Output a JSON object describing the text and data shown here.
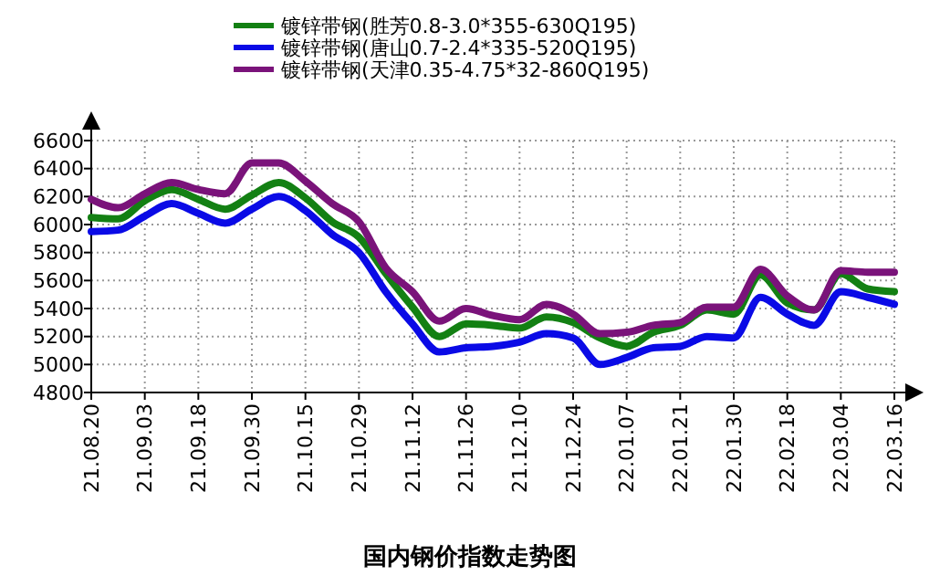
{
  "chart_data": {
    "type": "line",
    "title": "国内钢价指数走势图",
    "categories": [
      "21.08.20",
      null,
      "21.09.03",
      null,
      "21.09.18",
      null,
      "21.09.30",
      null,
      "21.10.15",
      null,
      "21.10.29",
      null,
      "21.11.12",
      null,
      "21.11.26",
      null,
      "21.12.10",
      null,
      "21.12.24",
      null,
      "22.01.07",
      null,
      "22.01.21",
      null,
      "22.01.30",
      null,
      "22.02.18",
      null,
      "22.03.04",
      null,
      "22.03.16"
    ],
    "series": [
      {
        "name": "镀锌带钢(胜芳0.8-3.0*355-630Q195)",
        "color": "#138013",
        "values": [
          6050,
          6040,
          6170,
          6250,
          6180,
          6110,
          6210,
          6300,
          6190,
          6020,
          5910,
          5650,
          5410,
          5200,
          5290,
          5280,
          5260,
          5340,
          5300,
          5190,
          5130,
          5230,
          5280,
          5390,
          5360,
          5640,
          5440,
          5390,
          5650,
          5540,
          5520
        ]
      },
      {
        "name": "镀锌带钢(唐山0.7-2.4*335-520Q195)",
        "color": "#0a0ae6",
        "values": [
          5950,
          5960,
          6060,
          6150,
          6080,
          6010,
          6110,
          6200,
          6100,
          5930,
          5800,
          5520,
          5290,
          5090,
          5120,
          5130,
          5160,
          5220,
          5190,
          5000,
          5050,
          5120,
          5130,
          5200,
          5190,
          5480,
          5360,
          5280,
          5520,
          5480,
          5430
        ]
      },
      {
        "name": "镀锌带钢(天津0.35-4.75*32-860Q195)",
        "color": "#7a137a",
        "values": [
          6180,
          6120,
          6220,
          6300,
          6250,
          6220,
          6440,
          6440,
          6310,
          6150,
          6020,
          5690,
          5520,
          5310,
          5400,
          5350,
          5320,
          5430,
          5360,
          5220,
          5230,
          5280,
          5300,
          5410,
          5410,
          5680,
          5490,
          5390,
          5670,
          5660,
          5660
        ]
      }
    ],
    "ylim": [
      4800,
      6600
    ],
    "yticks": [
      4800,
      5000,
      5200,
      5400,
      5600,
      5800,
      6000,
      6200,
      6400,
      6600
    ],
    "grid": true,
    "legend": "top",
    "marker": "none",
    "line_style": "solid"
  }
}
